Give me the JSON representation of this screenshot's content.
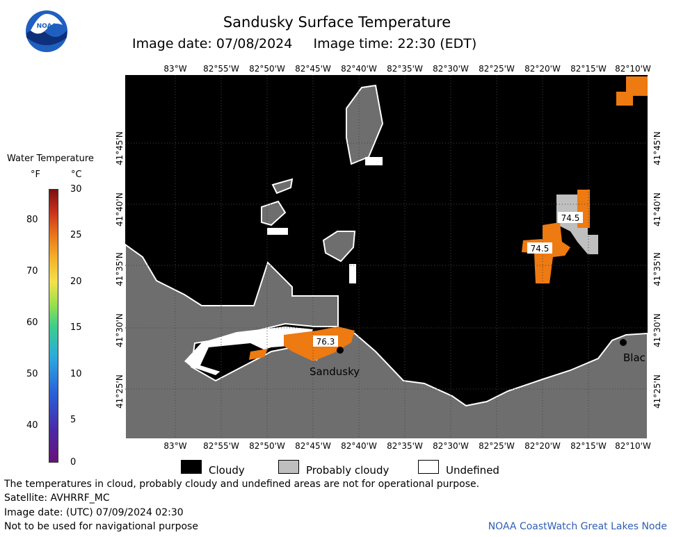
{
  "header": {
    "title": "Sandusky Surface Temperature",
    "subtitle": "Image date: 07/08/2024     Image time: 22:30 (EDT)"
  },
  "logo": {
    "text": "NOAA",
    "icon": "noaa-logo"
  },
  "legend": {
    "title": "Water Temperature",
    "unit_f": "°F",
    "unit_c": "°C",
    "f_ticks": [
      "80",
      "70",
      "60",
      "50",
      "40"
    ],
    "c_ticks": [
      "30",
      "25",
      "20",
      "15",
      "10",
      "5",
      "0"
    ]
  },
  "map": {
    "lon_labels": [
      "83°W",
      "82°55'W",
      "82°50'W",
      "82°45'W",
      "82°40'W",
      "82°35'W",
      "82°30'W",
      "82°25'W",
      "82°20'W",
      "82°15'W",
      "82°10'W"
    ],
    "lat_labels": [
      "41°45'N",
      "41°40'N",
      "41°35'N",
      "41°30'N",
      "41°25'N"
    ],
    "annotations": {
      "temp_1": "74.5",
      "temp_2": "74.5",
      "temp_3": "76.3",
      "city_sandusky": "Sandusky",
      "city_blac": "Blac"
    },
    "colors": {
      "cloudy": "#000000",
      "probably_cloudy": "#bfbfbf",
      "land": "#6e6e6e",
      "warm_water": "#ee7a12"
    }
  },
  "key": {
    "cloudy": "Cloudy",
    "probably_cloudy": "Probably cloudy",
    "undefined": "Undefined"
  },
  "notes": {
    "disclaimer": "The temperatures in cloud, probably cloudy and undefined areas are not for operational purpose.",
    "satellite": "Satellite: AVHRRF_MC",
    "utc_date": "Image date: (UTC) 07/09/2024  02:30",
    "nav_warning": "Not to be used for navigational purpose",
    "credit": "NOAA CoastWatch Great Lakes Node"
  }
}
